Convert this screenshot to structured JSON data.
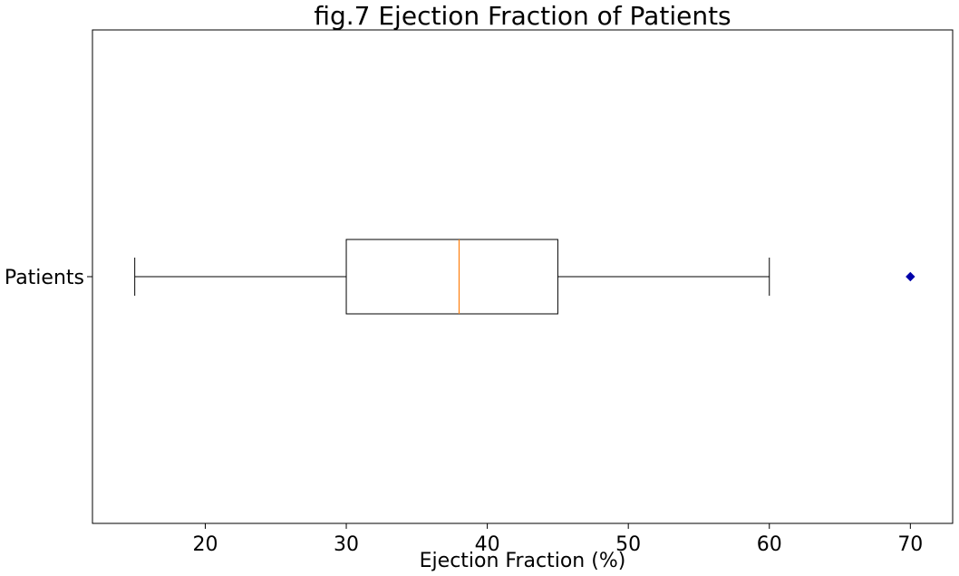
{
  "chart_data": {
    "type": "box",
    "orientation": "horizontal",
    "title": "fig.7 Ejection Fraction of Patients",
    "xlabel": "Ejection Fraction (%)",
    "ylabel": "",
    "xlim": [
      12.0,
      73.0
    ],
    "xticks": [
      20,
      30,
      40,
      50,
      60,
      70
    ],
    "categories": [
      "Patients"
    ],
    "series": [
      {
        "whisker_low": 15,
        "q1": 30,
        "median": 38,
        "q3": 45,
        "whisker_high": 60,
        "outliers": [
          70
        ]
      }
    ],
    "grid": false,
    "legend": "none",
    "colors": {
      "box": "#000000",
      "median": "#ff7f0e",
      "outlier": "#0000aa",
      "axes": "#000000"
    },
    "outlier_marker": "diamond"
  }
}
